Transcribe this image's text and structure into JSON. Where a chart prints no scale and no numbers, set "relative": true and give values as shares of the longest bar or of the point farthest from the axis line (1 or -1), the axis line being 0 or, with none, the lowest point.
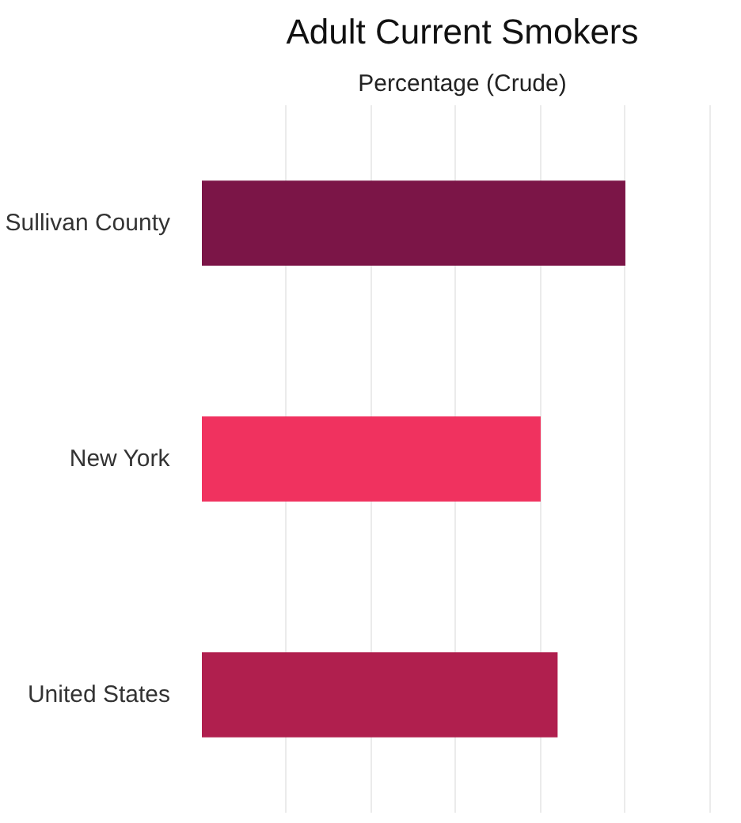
{
  "chart_data": {
    "type": "bar",
    "title": "Adult Current Smokers",
    "subtitle": "Percentage (Crude)",
    "orientation": "horizontal",
    "relative": true,
    "grid": "x",
    "categories": [
      "Sullivan County",
      "New York",
      "United States"
    ],
    "values": [
      1,
      0.8,
      0.84
    ],
    "colors": [
      "#7b1547",
      "#f0325f",
      "#b01f4e"
    ]
  }
}
